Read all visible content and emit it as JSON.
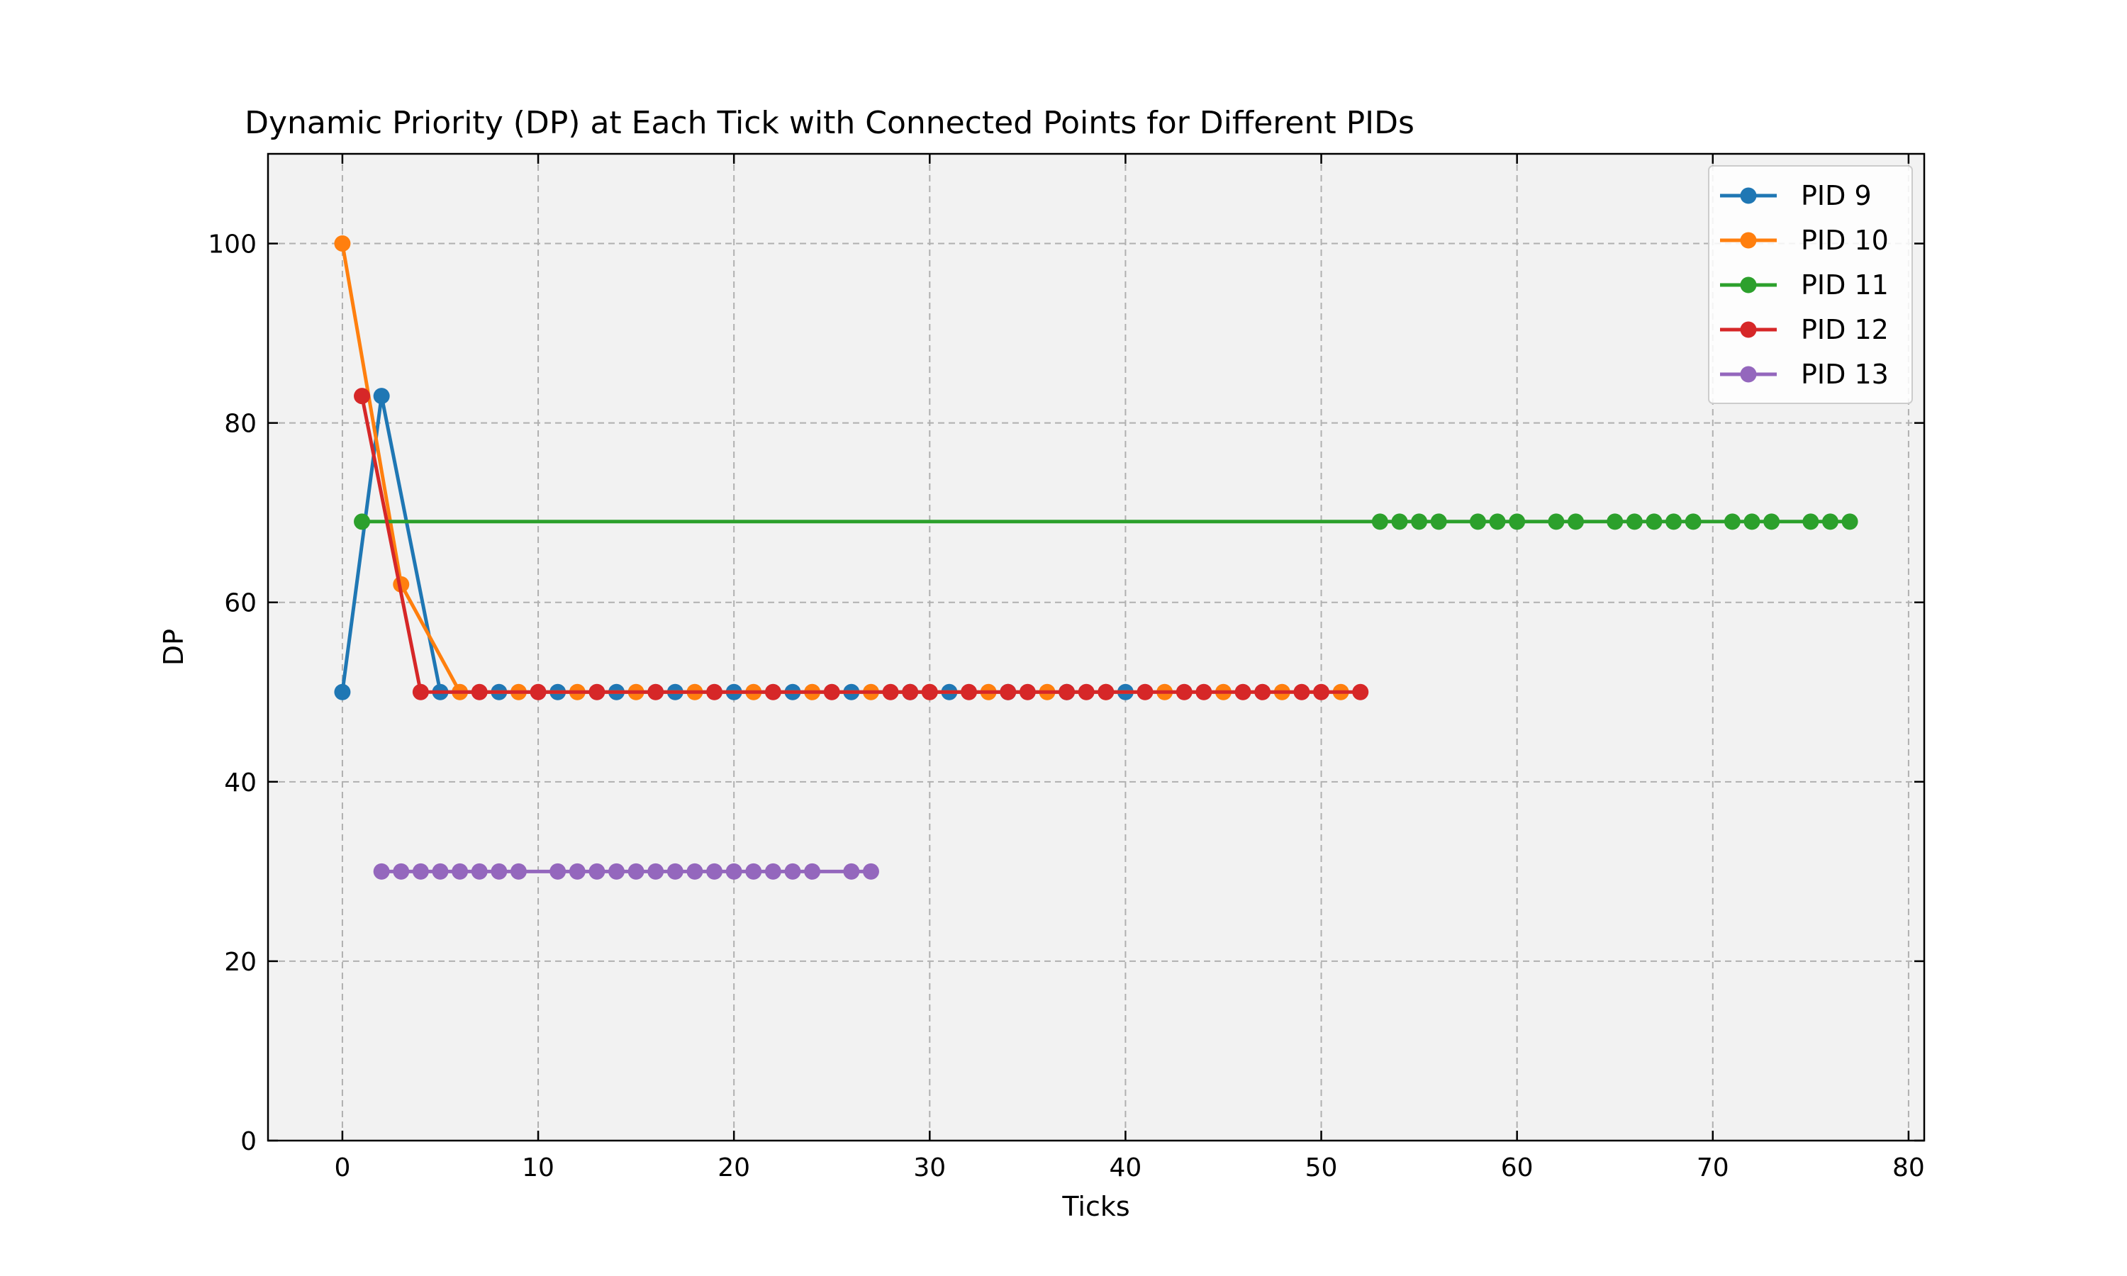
{
  "chart_data": {
    "type": "line",
    "title": "Dynamic Priority (DP) at Each Tick with Connected Points for Different PIDs",
    "xlabel": "Ticks",
    "ylabel": "DP",
    "xlim": [
      -3.8,
      80.8
    ],
    "ylim": [
      0,
      110
    ],
    "xticks": [
      0,
      10,
      20,
      30,
      40,
      50,
      60,
      70,
      80
    ],
    "yticks": [
      0,
      20,
      40,
      60,
      80,
      100
    ],
    "grid": true,
    "legend_position": "top-right",
    "plot_background": "#f2f2f2",
    "series": [
      {
        "name": "PID 9",
        "color": "#1f77b4",
        "x": [
          0,
          2,
          5,
          8,
          11,
          14,
          17,
          20,
          23,
          26,
          29,
          31,
          34,
          37,
          40
        ],
        "y": [
          50,
          83,
          50,
          50,
          50,
          50,
          50,
          50,
          50,
          50,
          50,
          50,
          50,
          50,
          50
        ]
      },
      {
        "name": "PID 10",
        "color": "#ff7f0e",
        "x": [
          0,
          3,
          6,
          9,
          12,
          15,
          18,
          21,
          24,
          27,
          30,
          33,
          36,
          39,
          42,
          45,
          48,
          51
        ],
        "y": [
          100,
          62,
          50,
          50,
          50,
          50,
          50,
          50,
          50,
          50,
          50,
          50,
          50,
          50,
          50,
          50,
          50,
          50
        ]
      },
      {
        "name": "PID 11",
        "color": "#2ca02c",
        "x": [
          1,
          53,
          54,
          55,
          56,
          58,
          59,
          60,
          62,
          63,
          65,
          66,
          67,
          68,
          69,
          71,
          72,
          73,
          75,
          76,
          77
        ],
        "y": [
          69,
          69,
          69,
          69,
          69,
          69,
          69,
          69,
          69,
          69,
          69,
          69,
          69,
          69,
          69,
          69,
          69,
          69,
          69,
          69,
          69
        ]
      },
      {
        "name": "PID 12",
        "color": "#d62728",
        "x": [
          1,
          4,
          7,
          10,
          13,
          16,
          19,
          22,
          25,
          28,
          29,
          30,
          32,
          34,
          35,
          37,
          38,
          39,
          41,
          43,
          44,
          46,
          47,
          49,
          50,
          52
        ],
        "y": [
          83,
          50,
          50,
          50,
          50,
          50,
          50,
          50,
          50,
          50,
          50,
          50,
          50,
          50,
          50,
          50,
          50,
          50,
          50,
          50,
          50,
          50,
          50,
          50,
          50,
          50
        ]
      },
      {
        "name": "PID 13",
        "color": "#9467bd",
        "x": [
          2,
          3,
          4,
          5,
          6,
          7,
          8,
          9,
          11,
          12,
          13,
          14,
          15,
          16,
          17,
          18,
          19,
          20,
          21,
          22,
          23,
          24,
          26,
          27
        ],
        "y": [
          30,
          30,
          30,
          30,
          30,
          30,
          30,
          30,
          30,
          30,
          30,
          30,
          30,
          30,
          30,
          30,
          30,
          30,
          30,
          30,
          30,
          30,
          30,
          30
        ]
      }
    ]
  }
}
